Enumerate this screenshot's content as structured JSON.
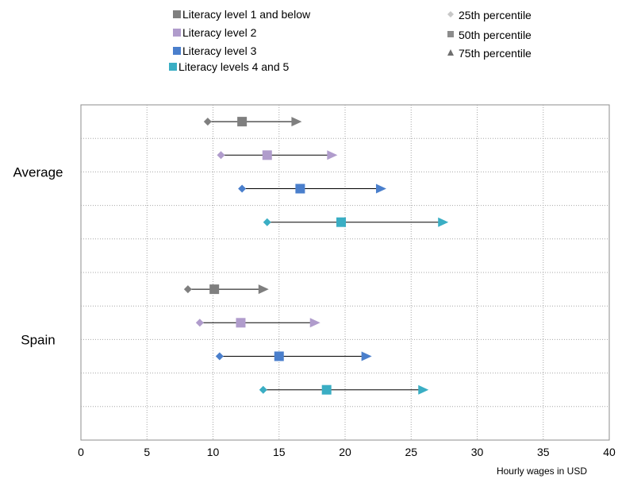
{
  "chart_data": {
    "type": "scatter",
    "title": "",
    "xlabel": "Hourly wages in USD",
    "ylabel": "",
    "xlim": [
      0,
      40
    ],
    "x_ticks": [
      0,
      5,
      10,
      15,
      20,
      25,
      30,
      35,
      40
    ],
    "grid": "dotted",
    "groups": [
      "Average",
      "Spain"
    ],
    "series": [
      {
        "name": "Literacy level 1 and below",
        "color": "#7f7f7f",
        "values": [
          {
            "group": "Average",
            "p25": 9.6,
            "p50": 12.2,
            "p75": 16.3
          },
          {
            "group": "Spain",
            "p25": 8.1,
            "p50": 10.1,
            "p75": 13.8
          }
        ]
      },
      {
        "name": "Literacy level 2",
        "color": "#b09ccc",
        "values": [
          {
            "group": "Average",
            "p25": 10.6,
            "p50": 14.1,
            "p75": 19.0
          },
          {
            "group": "Spain",
            "p25": 9.0,
            "p50": 12.1,
            "p75": 17.7
          }
        ]
      },
      {
        "name": "Literacy level 3",
        "color": "#4a7fcc",
        "values": [
          {
            "group": "Average",
            "p25": 12.2,
            "p50": 16.6,
            "p75": 22.7
          },
          {
            "group": "Spain",
            "p25": 10.5,
            "p50": 15.0,
            "p75": 21.6
          }
        ]
      },
      {
        "name": "Literacy levels 4 and 5",
        "color": "#3aaec4",
        "values": [
          {
            "group": "Average",
            "p25": 14.1,
            "p50": 19.7,
            "p75": 27.4
          },
          {
            "group": "Spain",
            "p25": 13.8,
            "p50": 18.6,
            "p75": 25.9
          }
        ]
      }
    ],
    "marker_legend": [
      {
        "name": "25th percentile",
        "marker": "diamond"
      },
      {
        "name": "50th percentile",
        "marker": "square"
      },
      {
        "name": "75th percentile",
        "marker": "triangle"
      }
    ],
    "legend_position": "top"
  }
}
